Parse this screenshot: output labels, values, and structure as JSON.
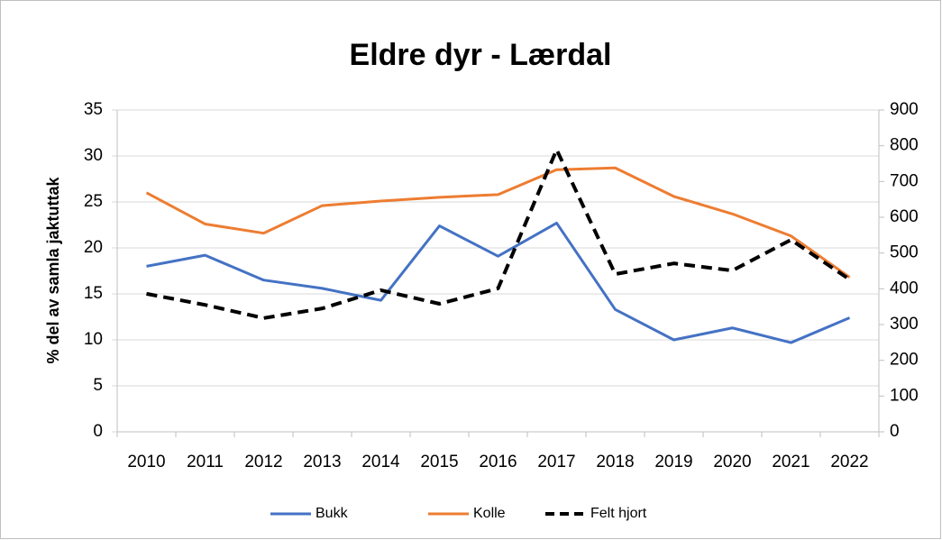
{
  "chart_data": {
    "type": "line",
    "title": "Eldre dyr - Lærdal",
    "y_label": "% del av samla jaktuttak",
    "categories": [
      "2010",
      "2011",
      "2012",
      "2013",
      "2014",
      "2015",
      "2016",
      "2017",
      "2018",
      "2019",
      "2020",
      "2021",
      "2022"
    ],
    "series": [
      {
        "name": "Bukk",
        "color": "#4472c4",
        "values": [
          18.0,
          19.2,
          16.5,
          15.6,
          14.3,
          22.4,
          19.1,
          22.7,
          13.3,
          10.0,
          11.3,
          9.7,
          12.4
        ]
      },
      {
        "name": "Kolle",
        "color": "#ed7d31",
        "values": [
          26.0,
          22.6,
          21.6,
          24.6,
          25.1,
          25.5,
          25.8,
          28.5,
          28.7,
          25.6,
          23.7,
          21.3,
          16.8
        ]
      },
      {
        "name": "Felt hjort",
        "color": "#000000",
        "dashed": true,
        "axis": "y2",
        "values": [
          386,
          355,
          318,
          345,
          396,
          358,
          401,
          789,
          441,
          471,
          451,
          537,
          426
        ]
      }
    ],
    "ylim": [
      0,
      35
    ],
    "yticks": [
      0,
      5,
      10,
      15,
      20,
      25,
      30,
      35
    ],
    "y2lim": [
      0,
      900
    ],
    "y2ticks": [
      0,
      100,
      200,
      300,
      400,
      500,
      600,
      700,
      800,
      900
    ],
    "grid": true,
    "legend": "bottom"
  }
}
